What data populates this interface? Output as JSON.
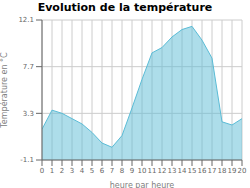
{
  "chart_data": {
    "type": "area",
    "title": "Evolution de la température",
    "x_label": "heure par heure",
    "y_label": "Température en °C",
    "x": [
      0,
      1,
      2,
      3,
      4,
      5,
      6,
      7,
      8,
      9,
      10,
      11,
      12,
      13,
      14,
      15,
      16,
      17,
      18,
      19,
      20
    ],
    "values": [
      1.8,
      3.6,
      3.3,
      2.8,
      2.3,
      1.5,
      0.5,
      0.1,
      1.2,
      3.8,
      6.5,
      9.0,
      9.5,
      10.5,
      11.2,
      11.5,
      10.2,
      8.5,
      2.5,
      2.2,
      2.8
    ],
    "baseline": -1.1,
    "xlim": [
      0,
      20
    ],
    "xticks": [
      0,
      1,
      2,
      3,
      4,
      5,
      6,
      7,
      8,
      9,
      10,
      11,
      12,
      13,
      14,
      15,
      16,
      17,
      18,
      19,
      20
    ],
    "ylim": [
      -1.1,
      12.1
    ],
    "yticks": [
      -1.1,
      3.3,
      7.7,
      12.1
    ],
    "grid": true,
    "color": "#5bbcd6"
  }
}
